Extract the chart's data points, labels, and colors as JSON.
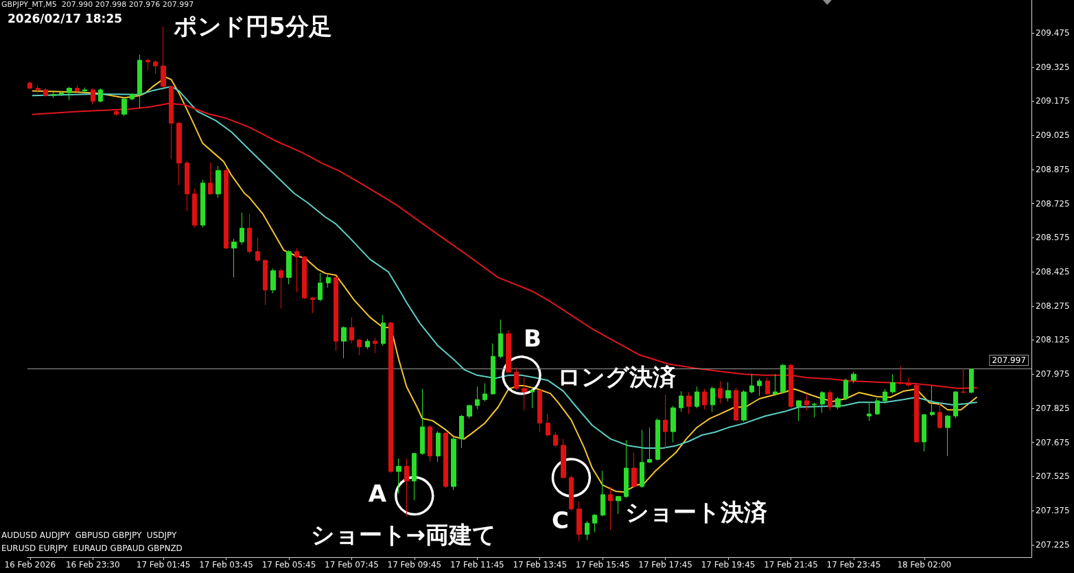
{
  "chart_data": {
    "type": "candlestick",
    "title": "ポンド円5分足",
    "subtitle": "2026/02/17 18:25",
    "annotations": [
      "GBPJPY_MT,M5  207.990 207.998 207.976 207.997",
      "AUDUSD AUDJPY  GBPUSD GBPJPY  USDJPY",
      "EURUSD EURJPY  EURAUD GBPAUD GBPNZD",
      {
        "text": "A",
        "x": "2026-02-17T09:45",
        "y": 207.44
      },
      {
        "text": "ショート→両建て",
        "x": "2026-02-17T09:45",
        "y": 207.44
      },
      {
        "text": "B",
        "x": "2026-02-17T13:10",
        "y": 207.97
      },
      {
        "text": "ロング決済",
        "x": "2026-02-17T13:10",
        "y": 207.97
      },
      {
        "text": "C",
        "x": "2026-02-17T14:45",
        "y": 207.52
      },
      {
        "text": "ショート決済",
        "x": "2026-02-17T14:45",
        "y": 207.52
      }
    ],
    "x": [
      "2026-02-16T21:30",
      "2026-02-16T21:45",
      "2026-02-16T22:00",
      "2026-02-16T22:15",
      "2026-02-16T22:30",
      "2026-02-16T22:45",
      "2026-02-16T23:00",
      "2026-02-16T23:15",
      "2026-02-16T23:30",
      "2026-02-16T23:45",
      "2026-02-17T00:15",
      "2026-02-17T00:30",
      "2026-02-17T00:45",
      "2026-02-17T01:00",
      "2026-02-17T01:15",
      "2026-02-17T01:30",
      "2026-02-17T01:45",
      "2026-02-17T02:00",
      "2026-02-17T02:15",
      "2026-02-17T02:30",
      "2026-02-17T02:45",
      "2026-02-17T03:00",
      "2026-02-17T03:15",
      "2026-02-17T03:30",
      "2026-02-17T03:45",
      "2026-02-17T04:00",
      "2026-02-17T04:15",
      "2026-02-17T04:30",
      "2026-02-17T04:45",
      "2026-02-17T05:00",
      "2026-02-17T05:15",
      "2026-02-17T05:30",
      "2026-02-17T05:45",
      "2026-02-17T06:00",
      "2026-02-17T06:15",
      "2026-02-17T06:30",
      "2026-02-17T06:45",
      "2026-02-17T07:00",
      "2026-02-17T07:15",
      "2026-02-17T07:30",
      "2026-02-17T07:45",
      "2026-02-17T08:00",
      "2026-02-17T08:15",
      "2026-02-17T08:30",
      "2026-02-17T08:45",
      "2026-02-17T09:00",
      "2026-02-17T09:15",
      "2026-02-17T09:30",
      "2026-02-17T09:45",
      "2026-02-17T10:00",
      "2026-02-17T10:15",
      "2026-02-17T10:30",
      "2026-02-17T10:45",
      "2026-02-17T11:00",
      "2026-02-17T11:15",
      "2026-02-17T11:30",
      "2026-02-17T11:45",
      "2026-02-17T12:00",
      "2026-02-17T12:15",
      "2026-02-17T12:30",
      "2026-02-17T12:45",
      "2026-02-17T13:00",
      "2026-02-17T13:15",
      "2026-02-17T13:30",
      "2026-02-17T13:45",
      "2026-02-17T14:00",
      "2026-02-17T14:15",
      "2026-02-17T14:30",
      "2026-02-17T14:45",
      "2026-02-17T15:00",
      "2026-02-17T15:15",
      "2026-02-17T15:30",
      "2026-02-17T15:45",
      "2026-02-17T16:00",
      "2026-02-17T16:15",
      "2026-02-17T16:30",
      "2026-02-17T16:45",
      "2026-02-17T17:00",
      "2026-02-17T17:15",
      "2026-02-17T17:30",
      "2026-02-17T17:45",
      "2026-02-17T18:00",
      "2026-02-17T18:15",
      "2026-02-17T18:30",
      "2026-02-17T18:45",
      "2026-02-17T19:00",
      "2026-02-17T19:15",
      "2026-02-17T19:30",
      "2026-02-17T19:45",
      "2026-02-17T20:00",
      "2026-02-17T20:15",
      "2026-02-17T20:30",
      "2026-02-17T20:45",
      "2026-02-17T21:00",
      "2026-02-17T21:15",
      "2026-02-17T21:30",
      "2026-02-17T21:45",
      "2026-02-17T22:00",
      "2026-02-17T22:15",
      "2026-02-17T22:30",
      "2026-02-17T22:45",
      "2026-02-17T23:00",
      "2026-02-17T23:15",
      "2026-02-17T23:30",
      "2026-02-17T23:45",
      "2026-02-18T00:15",
      "2026-02-18T00:30",
      "2026-02-18T00:45",
      "2026-02-18T01:00",
      "2026-02-18T01:15",
      "2026-02-18T01:30",
      "2026-02-18T01:45",
      "2026-02-18T02:00",
      "2026-02-18T02:15",
      "2026-02-18T02:30",
      "2026-02-18T02:45",
      "2026-02-18T03:00",
      "2026-02-18T03:15",
      "2026-02-18T03:30"
    ],
    "ohlc": [
      [
        209.255,
        209.262,
        209.228,
        209.232
      ],
      [
        209.232,
        209.245,
        209.21,
        209.225
      ],
      [
        209.225,
        209.232,
        209.195,
        209.2
      ],
      [
        209.2,
        209.215,
        209.19,
        209.205
      ],
      [
        209.205,
        209.218,
        209.198,
        209.212
      ],
      [
        209.212,
        209.238,
        209.18,
        209.232
      ],
      [
        209.232,
        209.245,
        209.215,
        209.22
      ],
      [
        209.22,
        209.235,
        209.212,
        209.225
      ],
      [
        209.225,
        209.232,
        209.16,
        209.175
      ],
      [
        209.175,
        209.232,
        209.17,
        209.225
      ],
      [
        209.13,
        209.135,
        209.112,
        209.118
      ],
      [
        209.118,
        209.185,
        209.11,
        209.185
      ],
      [
        209.185,
        209.21,
        209.18,
        209.205
      ],
      [
        209.205,
        209.38,
        209.145,
        209.355
      ],
      [
        209.355,
        209.362,
        209.312,
        209.348
      ],
      [
        209.348,
        209.355,
        209.295,
        209.33
      ],
      [
        209.33,
        209.502,
        209.237,
        209.24
      ],
      [
        209.24,
        209.242,
        208.921,
        209.078
      ],
      [
        209.078,
        209.085,
        208.806,
        208.903
      ],
      [
        208.903,
        208.912,
        208.692,
        208.767
      ],
      [
        208.767,
        208.79,
        208.62,
        208.63
      ],
      [
        208.63,
        208.83,
        208.62,
        208.815
      ],
      [
        208.815,
        208.905,
        208.765,
        208.767
      ],
      [
        208.767,
        208.89,
        208.75,
        208.87
      ],
      [
        208.87,
        208.88,
        208.525,
        208.529
      ],
      [
        208.529,
        208.57,
        208.4,
        208.556
      ],
      [
        208.556,
        208.685,
        208.545,
        208.617
      ],
      [
        208.617,
        208.68,
        208.505,
        208.514
      ],
      [
        208.514,
        208.575,
        208.47,
        208.475
      ],
      [
        208.475,
        208.48,
        208.279,
        208.345
      ],
      [
        208.345,
        208.44,
        208.33,
        208.43
      ],
      [
        208.43,
        208.44,
        208.264,
        208.4
      ],
      [
        208.4,
        208.52,
        208.37,
        208.514
      ],
      [
        208.514,
        208.528,
        208.335,
        208.49
      ],
      [
        208.49,
        208.495,
        208.305,
        208.31
      ],
      [
        208.31,
        208.315,
        208.243,
        208.303
      ],
      [
        208.303,
        208.42,
        208.295,
        208.376
      ],
      [
        208.376,
        208.412,
        208.355,
        208.4
      ],
      [
        208.4,
        208.405,
        208.077,
        208.12
      ],
      [
        208.12,
        208.185,
        208.045,
        208.18
      ],
      [
        208.18,
        208.225,
        208.11,
        208.125
      ],
      [
        208.125,
        208.13,
        208.058,
        208.095
      ],
      [
        208.095,
        208.13,
        208.085,
        208.12
      ],
      [
        208.12,
        208.135,
        208.068,
        208.11
      ],
      [
        208.11,
        208.234,
        208.1,
        208.2
      ],
      [
        208.2,
        208.205,
        207.54,
        207.547
      ],
      [
        207.547,
        207.605,
        207.45,
        207.57
      ],
      [
        207.57,
        207.605,
        207.35,
        207.505
      ],
      [
        207.505,
        207.63,
        207.42,
        207.626
      ],
      [
        207.626,
        207.91,
        207.62,
        207.743
      ],
      [
        207.743,
        207.75,
        207.59,
        207.615
      ],
      [
        207.615,
        207.725,
        207.59,
        207.716
      ],
      [
        207.716,
        207.72,
        207.475,
        207.481
      ],
      [
        207.481,
        207.7,
        207.465,
        207.69
      ],
      [
        207.69,
        207.795,
        207.65,
        207.79
      ],
      [
        207.79,
        207.84,
        207.78,
        207.837
      ],
      [
        207.837,
        207.92,
        207.82,
        207.863
      ],
      [
        207.863,
        207.935,
        207.855,
        207.888
      ],
      [
        207.888,
        208.11,
        207.885,
        208.053
      ],
      [
        208.053,
        208.215,
        208.045,
        208.153
      ],
      [
        208.153,
        208.168,
        207.98,
        207.984
      ],
      [
        207.984,
        208.005,
        207.905,
        207.912
      ],
      [
        207.912,
        207.96,
        207.815,
        207.897
      ],
      [
        207.897,
        207.91,
        207.825,
        207.903
      ],
      [
        207.903,
        207.905,
        207.72,
        207.76
      ],
      [
        207.76,
        207.8,
        207.7,
        207.707
      ],
      [
        207.707,
        207.72,
        207.655,
        207.662
      ],
      [
        207.662,
        207.69,
        207.515,
        207.52
      ],
      [
        207.52,
        207.53,
        207.375,
        207.382
      ],
      [
        207.382,
        207.415,
        207.24,
        207.27
      ],
      [
        207.27,
        207.33,
        207.245,
        207.32
      ],
      [
        207.32,
        207.36,
        207.28,
        207.355
      ],
      [
        207.355,
        207.55,
        207.35,
        207.445
      ],
      [
        207.445,
        207.48,
        207.29,
        207.418
      ],
      [
        207.418,
        207.44,
        207.36,
        207.437
      ],
      [
        207.437,
        207.685,
        207.43,
        207.562
      ],
      [
        207.562,
        207.63,
        207.475,
        207.481
      ],
      [
        207.481,
        207.73,
        207.475,
        207.587
      ],
      [
        207.587,
        207.74,
        207.585,
        207.6
      ],
      [
        207.6,
        207.78,
        207.595,
        207.773
      ],
      [
        207.773,
        207.885,
        207.65,
        207.722
      ],
      [
        207.722,
        207.835,
        207.675,
        207.827
      ],
      [
        207.827,
        207.9,
        207.81,
        207.879
      ],
      [
        207.879,
        207.895,
        207.8,
        207.833
      ],
      [
        207.833,
        207.92,
        207.825,
        207.897
      ],
      [
        207.897,
        207.91,
        207.82,
        207.84
      ],
      [
        207.84,
        207.92,
        207.81,
        207.912
      ],
      [
        207.912,
        207.945,
        207.845,
        207.87
      ],
      [
        207.87,
        207.94,
        207.855,
        207.903
      ],
      [
        207.903,
        207.915,
        207.77,
        207.773
      ],
      [
        207.773,
        207.905,
        207.765,
        207.897
      ],
      [
        207.897,
        207.975,
        207.89,
        207.924
      ],
      [
        207.924,
        207.955,
        207.88,
        207.945
      ],
      [
        207.945,
        207.96,
        207.885,
        207.888
      ],
      [
        207.888,
        207.975,
        207.88,
        207.897
      ],
      [
        207.897,
        208.02,
        207.89,
        208.014
      ],
      [
        208.014,
        208.02,
        207.825,
        207.833
      ],
      [
        207.833,
        207.862,
        207.77,
        207.858
      ],
      [
        207.858,
        207.89,
        207.815,
        207.84
      ],
      [
        207.84,
        207.85,
        207.785,
        207.843
      ],
      [
        207.843,
        207.9,
        207.805,
        207.894
      ],
      [
        207.894,
        207.905,
        207.815,
        207.83
      ],
      [
        207.83,
        207.875,
        207.82,
        207.867
      ],
      [
        207.867,
        207.955,
        207.86,
        207.948
      ],
      [
        207.948,
        207.985,
        207.935,
        207.975
      ],
      [
        207.791,
        207.855,
        207.77,
        207.8
      ],
      [
        207.8,
        207.87,
        207.795,
        207.858
      ],
      [
        207.858,
        207.91,
        207.845,
        207.897
      ],
      [
        207.897,
        207.975,
        207.89,
        207.938
      ],
      [
        207.938,
        208.01,
        207.93,
        207.933
      ],
      [
        207.933,
        207.96,
        207.92,
        207.927
      ],
      [
        207.927,
        207.935,
        207.675,
        207.677
      ],
      [
        207.677,
        207.8,
        207.635,
        207.797
      ],
      [
        207.797,
        207.925,
        207.79,
        207.807
      ],
      [
        207.807,
        207.85,
        207.735,
        207.74
      ],
      [
        207.74,
        207.795,
        207.615,
        207.791
      ],
      [
        207.791,
        207.9,
        207.78,
        207.897
      ],
      [
        207.897,
        208,
        207.89,
        207.895
      ],
      [
        207.895,
        207.998,
        207.89,
        207.997
      ]
    ],
    "colors": [
      "#dd1111",
      "#dd1111",
      "#dd1111",
      "#2add2a",
      "#2add2a",
      "#2add2a",
      "#dd1111",
      "#2add2a",
      "#dd1111",
      "#2add2a",
      "#dd1111",
      "#2add2a",
      "#2add2a",
      "#2add2a",
      "#dd1111",
      "#dd1111",
      "#dd1111",
      "#dd1111",
      "#dd1111",
      "#dd1111",
      "#dd1111",
      "#2add2a",
      "#dd1111",
      "#2add2a",
      "#dd1111",
      "#2add2a",
      "#2add2a",
      "#dd1111",
      "#dd1111",
      "#dd1111",
      "#2add2a",
      "#dd1111",
      "#2add2a",
      "#dd1111",
      "#dd1111",
      "#dd1111",
      "#2add2a",
      "#2add2a",
      "#dd1111",
      "#2add2a",
      "#dd1111",
      "#dd1111",
      "#2add2a",
      "#dd1111",
      "#2add2a",
      "#dd1111",
      "#2add2a",
      "#dd1111",
      "#2add2a",
      "#2add2a",
      "#dd1111",
      "#2add2a",
      "#dd1111",
      "#2add2a",
      "#2add2a",
      "#2add2a",
      "#2add2a",
      "#2add2a",
      "#2add2a",
      "#2add2a",
      "#dd1111",
      "#dd1111",
      "#dd1111",
      "#2add2a",
      "#dd1111",
      "#dd1111",
      "#dd1111",
      "#dd1111",
      "#dd1111",
      "#dd1111",
      "#2add2a",
      "#2add2a",
      "#2add2a",
      "#dd1111",
      "#2add2a",
      "#2add2a",
      "#dd1111",
      "#2add2a",
      "#2add2a",
      "#2add2a",
      "#dd1111",
      "#2add2a",
      "#2add2a",
      "#dd1111",
      "#2add2a",
      "#dd1111",
      "#2add2a",
      "#dd1111",
      "#2add2a",
      "#dd1111",
      "#2add2a",
      "#2add2a",
      "#2add2a",
      "#dd1111",
      "#2add2a",
      "#2add2a",
      "#dd1111",
      "#2add2a",
      "#dd1111",
      "#2add2a",
      "#2add2a",
      "#dd1111",
      "#2add2a",
      "#2add2a",
      "#2add2a",
      "#2add2a",
      "#2add2a",
      "#2add2a",
      "#2add2a",
      "#dd1111",
      "#dd1111",
      "#dd1111",
      "#2add2a",
      "#2add2a",
      "#dd1111",
      "#2add2a",
      "#2add2a",
      "#dd1111",
      "#2add2a"
    ],
    "series": [
      {
        "type": "line",
        "color": "#f5c531",
        "x": [
          "2026-02-16T21:35",
          "2026-02-16T23:00",
          "2026-02-16T23:40",
          "2026-02-17T00:30",
          "2026-02-17T01:00",
          "2026-02-17T01:10",
          "2026-02-17T01:25",
          "2026-02-17T01:50",
          "2026-02-17T02:00",
          "2026-02-17T02:15",
          "2026-02-17T02:40",
          "2026-02-17T03:00",
          "2026-02-17T03:25",
          "2026-02-17T03:40",
          "2026-02-17T03:55",
          "2026-02-17T04:20",
          "2026-02-17T04:30",
          "2026-02-17T04:55",
          "2026-02-17T05:35",
          "2026-02-17T06:00",
          "2026-02-17T06:15",
          "2026-02-17T06:40",
          "2026-02-17T06:55",
          "2026-02-17T07:15",
          "2026-02-17T07:50",
          "2026-02-17T08:20",
          "2026-02-17T08:45",
          "2026-02-17T09:00",
          "2026-02-17T09:15",
          "2026-02-17T09:30",
          "2026-02-17T09:50",
          "2026-02-17T10:00",
          "2026-02-17T10:20",
          "2026-02-17T10:45",
          "2026-02-17T11:00",
          "2026-02-17T11:20",
          "2026-02-17T11:35",
          "2026-02-17T12:00",
          "2026-02-17T12:25",
          "2026-02-17T12:45",
          "2026-02-17T13:05",
          "2026-02-17T13:15",
          "2026-02-17T13:40",
          "2026-02-17T14:05",
          "2026-02-17T14:20",
          "2026-02-17T14:45",
          "2026-02-17T15:10",
          "2026-02-17T15:25",
          "2026-02-17T15:45",
          "2026-02-17T16:10",
          "2026-02-17T16:25",
          "2026-02-17T16:50",
          "2026-02-17T17:05",
          "2026-02-17T17:25",
          "2026-02-17T17:50",
          "2026-02-17T18:05",
          "2026-02-17T18:25",
          "2026-02-17T18:45",
          "2026-02-17T19:10",
          "2026-02-17T19:30",
          "2026-02-17T19:55",
          "2026-02-17T20:20",
          "2026-02-17T20:45",
          "2026-02-17T21:10",
          "2026-02-17T21:35",
          "2026-02-17T21:50",
          "2026-02-17T22:00",
          "2026-02-17T22:25",
          "2026-02-17T22:45",
          "2026-02-17T23:05",
          "2026-02-17T23:30",
          "2026-02-17T23:55",
          "2026-02-18T00:30",
          "2026-02-18T00:55",
          "2026-02-18T01:20",
          "2026-02-18T01:45",
          "2026-02-18T02:10",
          "2026-02-18T02:30",
          "2026-02-18T02:45",
          "2026-02-18T03:10",
          "2026-02-18T03:20",
          "2026-02-18T03:40"
        ],
        "values": [
          209.22,
          209.215,
          209.21,
          209.19,
          209.2,
          209.21,
          209.24,
          209.28,
          209.27,
          209.21,
          209.09,
          208.99,
          208.94,
          208.91,
          208.85,
          208.77,
          208.75,
          208.68,
          208.52,
          208.493,
          208.487,
          208.436,
          208.418,
          208.41,
          208.3,
          208.225,
          208.18,
          208.18,
          208.04,
          207.92,
          207.83,
          207.78,
          207.77,
          207.73,
          207.7,
          207.69,
          207.715,
          207.76,
          207.83,
          207.91,
          207.924,
          207.924,
          207.91,
          207.89,
          207.85,
          207.773,
          207.65,
          207.562,
          207.487,
          207.46,
          207.457,
          207.487,
          207.496,
          207.547,
          207.6,
          207.63,
          207.69,
          207.74,
          207.78,
          207.8,
          207.827,
          207.833,
          207.867,
          207.882,
          207.897,
          207.91,
          207.903,
          207.882,
          207.867,
          207.855,
          207.867,
          207.894,
          207.876,
          207.873,
          207.9,
          207.909,
          207.849,
          207.843,
          207.818,
          207.818,
          207.836,
          207.873
        ]
      },
      {
        "type": "line",
        "color": "#5ccfc4",
        "x": [
          "2026-02-16T21:35",
          "2026-02-16T23:40",
          "2026-02-17T01:00",
          "2026-02-17T01:25",
          "2026-02-17T02:00",
          "2026-02-17T02:15",
          "2026-02-17T02:50",
          "2026-02-17T03:25",
          "2026-02-17T03:55",
          "2026-02-17T04:30",
          "2026-02-17T05:10",
          "2026-02-17T05:55",
          "2026-02-17T06:20",
          "2026-02-17T06:55",
          "2026-02-17T07:15",
          "2026-02-17T07:45",
          "2026-02-17T08:20",
          "2026-02-17T08:55",
          "2026-02-17T09:20",
          "2026-02-17T09:30",
          "2026-02-17T09:55",
          "2026-02-17T10:30",
          "2026-02-17T11:00",
          "2026-02-17T11:20",
          "2026-02-17T11:45",
          "2026-02-17T12:20",
          "2026-02-17T12:45",
          "2026-02-17T13:10",
          "2026-02-17T13:35",
          "2026-02-17T14:00",
          "2026-02-17T14:30",
          "2026-02-17T14:55",
          "2026-02-17T15:25",
          "2026-02-17T16:00",
          "2026-02-17T16:35",
          "2026-02-17T17:05",
          "2026-02-17T17:40",
          "2026-02-17T18:05",
          "2026-02-17T18:30",
          "2026-02-17T18:55",
          "2026-02-17T19:20",
          "2026-02-17T19:45",
          "2026-02-17T20:15",
          "2026-02-17T20:55",
          "2026-02-17T21:35",
          "2026-02-17T22:00",
          "2026-02-17T22:45",
          "2026-02-17T23:25",
          "2026-02-17T23:55",
          "2026-02-18T00:45",
          "2026-02-18T01:20",
          "2026-02-18T01:45",
          "2026-02-18T02:20",
          "2026-02-18T02:55",
          "2026-02-18T03:20",
          "2026-02-18T03:40"
        ],
        "values": [
          209.2,
          209.207,
          209.204,
          209.222,
          209.24,
          209.22,
          209.13,
          209.09,
          209.04,
          208.96,
          208.87,
          208.77,
          208.73,
          208.665,
          208.635,
          208.565,
          208.48,
          208.425,
          208.33,
          208.29,
          208.2,
          208.1,
          208.04,
          207.995,
          207.97,
          207.957,
          207.97,
          207.97,
          207.96,
          207.948,
          207.9,
          207.83,
          207.75,
          207.69,
          207.66,
          207.65,
          207.65,
          207.66,
          207.68,
          207.707,
          207.72,
          207.74,
          207.758,
          207.79,
          207.812,
          207.83,
          207.833,
          207.836,
          207.851,
          207.851,
          207.863,
          207.873,
          207.851,
          207.84,
          207.845,
          207.851
        ]
      },
      {
        "type": "line",
        "color": "#e0161c",
        "x": [
          "2026-02-16T21:35",
          "2026-02-16T23:00",
          "2026-02-17T00:40",
          "2026-02-17T01:20",
          "2026-02-17T01:55",
          "2026-02-17T02:25",
          "2026-02-17T03:10",
          "2026-02-17T03:45",
          "2026-02-17T04:30",
          "2026-02-17T05:20",
          "2026-02-17T06:10",
          "2026-02-17T06:50",
          "2026-02-17T07:20",
          "2026-02-17T08:05",
          "2026-02-17T08:45",
          "2026-02-17T09:10",
          "2026-02-17T10:20",
          "2026-02-17T11:25",
          "2026-02-17T12:25",
          "2026-02-17T13:30",
          "2026-02-17T14:05",
          "2026-02-17T14:45",
          "2026-02-17T15:25",
          "2026-02-17T16:05",
          "2026-02-17T16:55",
          "2026-02-17T17:50",
          "2026-02-17T18:45",
          "2026-02-17T19:30",
          "2026-02-17T20:15",
          "2026-02-17T20:55",
          "2026-02-17T21:45",
          "2026-02-17T22:15",
          "2026-02-17T23:00",
          "2026-02-17T23:40",
          "2026-02-18T00:40",
          "2026-02-18T01:20",
          "2026-02-18T01:45",
          "2026-02-18T02:20",
          "2026-02-18T03:05",
          "2026-02-18T03:40"
        ],
        "values": [
          209.117,
          209.13,
          209.14,
          209.15,
          209.165,
          209.16,
          209.12,
          209.1,
          209.06,
          209.0,
          208.95,
          208.9,
          208.87,
          208.81,
          208.755,
          208.72,
          208.605,
          208.5,
          208.4,
          208.34,
          208.294,
          208.234,
          208.174,
          208.123,
          208.06,
          208.02,
          208.0,
          207.987,
          207.975,
          207.97,
          207.97,
          207.96,
          207.954,
          207.945,
          207.939,
          207.936,
          207.933,
          207.924,
          207.912,
          207.915
        ]
      },
      {
        "type": "scatter",
        "color": "#ffffff",
        "marker": "circle",
        "x": [
          "2026-02-17T09:45",
          "2026-02-17T13:10",
          "2026-02-17T14:45"
        ],
        "values": [
          207.44,
          207.97,
          207.52
        ]
      }
    ],
    "xlim": [
      "2026-02-16T21:25",
      "2026-02-18T05:25"
    ],
    "xticks": [
      {
        "value": "2026-02-16T21:30",
        "label": "16 Feb 2026"
      },
      {
        "value": "2026-02-16T23:30",
        "label": "16 Feb 23:30"
      },
      {
        "value": "2026-02-17T01:45",
        "label": "17 Feb 01:45"
      },
      {
        "value": "2026-02-17T03:45",
        "label": "17 Feb 03:45"
      },
      {
        "value": "2026-02-17T05:45",
        "label": "17 Feb 05:45"
      },
      {
        "value": "2026-02-17T07:45",
        "label": "17 Feb 07:45"
      },
      {
        "value": "2026-02-17T09:45",
        "label": "17 Feb 09:45"
      },
      {
        "value": "2026-02-17T11:45",
        "label": "17 Feb 11:45"
      },
      {
        "value": "2026-02-17T13:45",
        "label": "17 Feb 13:45"
      },
      {
        "value": "2026-02-17T15:45",
        "label": "17 Feb 15:45"
      },
      {
        "value": "2026-02-17T17:45",
        "label": "17 Feb 17:45"
      },
      {
        "value": "2026-02-17T19:45",
        "label": "17 Feb 19:45"
      },
      {
        "value": "2026-02-17T21:45",
        "label": "17 Feb 21:45"
      },
      {
        "value": "2026-02-17T23:45",
        "label": "17 Feb 23:45"
      },
      {
        "value": "2026-02-18T02:00",
        "label": "18 Feb 02:00"
      }
    ],
    "ylim": [
      207.17,
      209.62
    ],
    "yticks": [
      207.225,
      207.375,
      207.525,
      207.675,
      207.825,
      207.975,
      208.125,
      208.275,
      208.425,
      208.575,
      208.725,
      208.875,
      209.025,
      209.175,
      209.325,
      209.475
    ],
    "ref_lines": [
      {
        "axis": "y",
        "value": 207.997,
        "label": "207.997",
        "color": "#9a9a9a"
      }
    ]
  }
}
